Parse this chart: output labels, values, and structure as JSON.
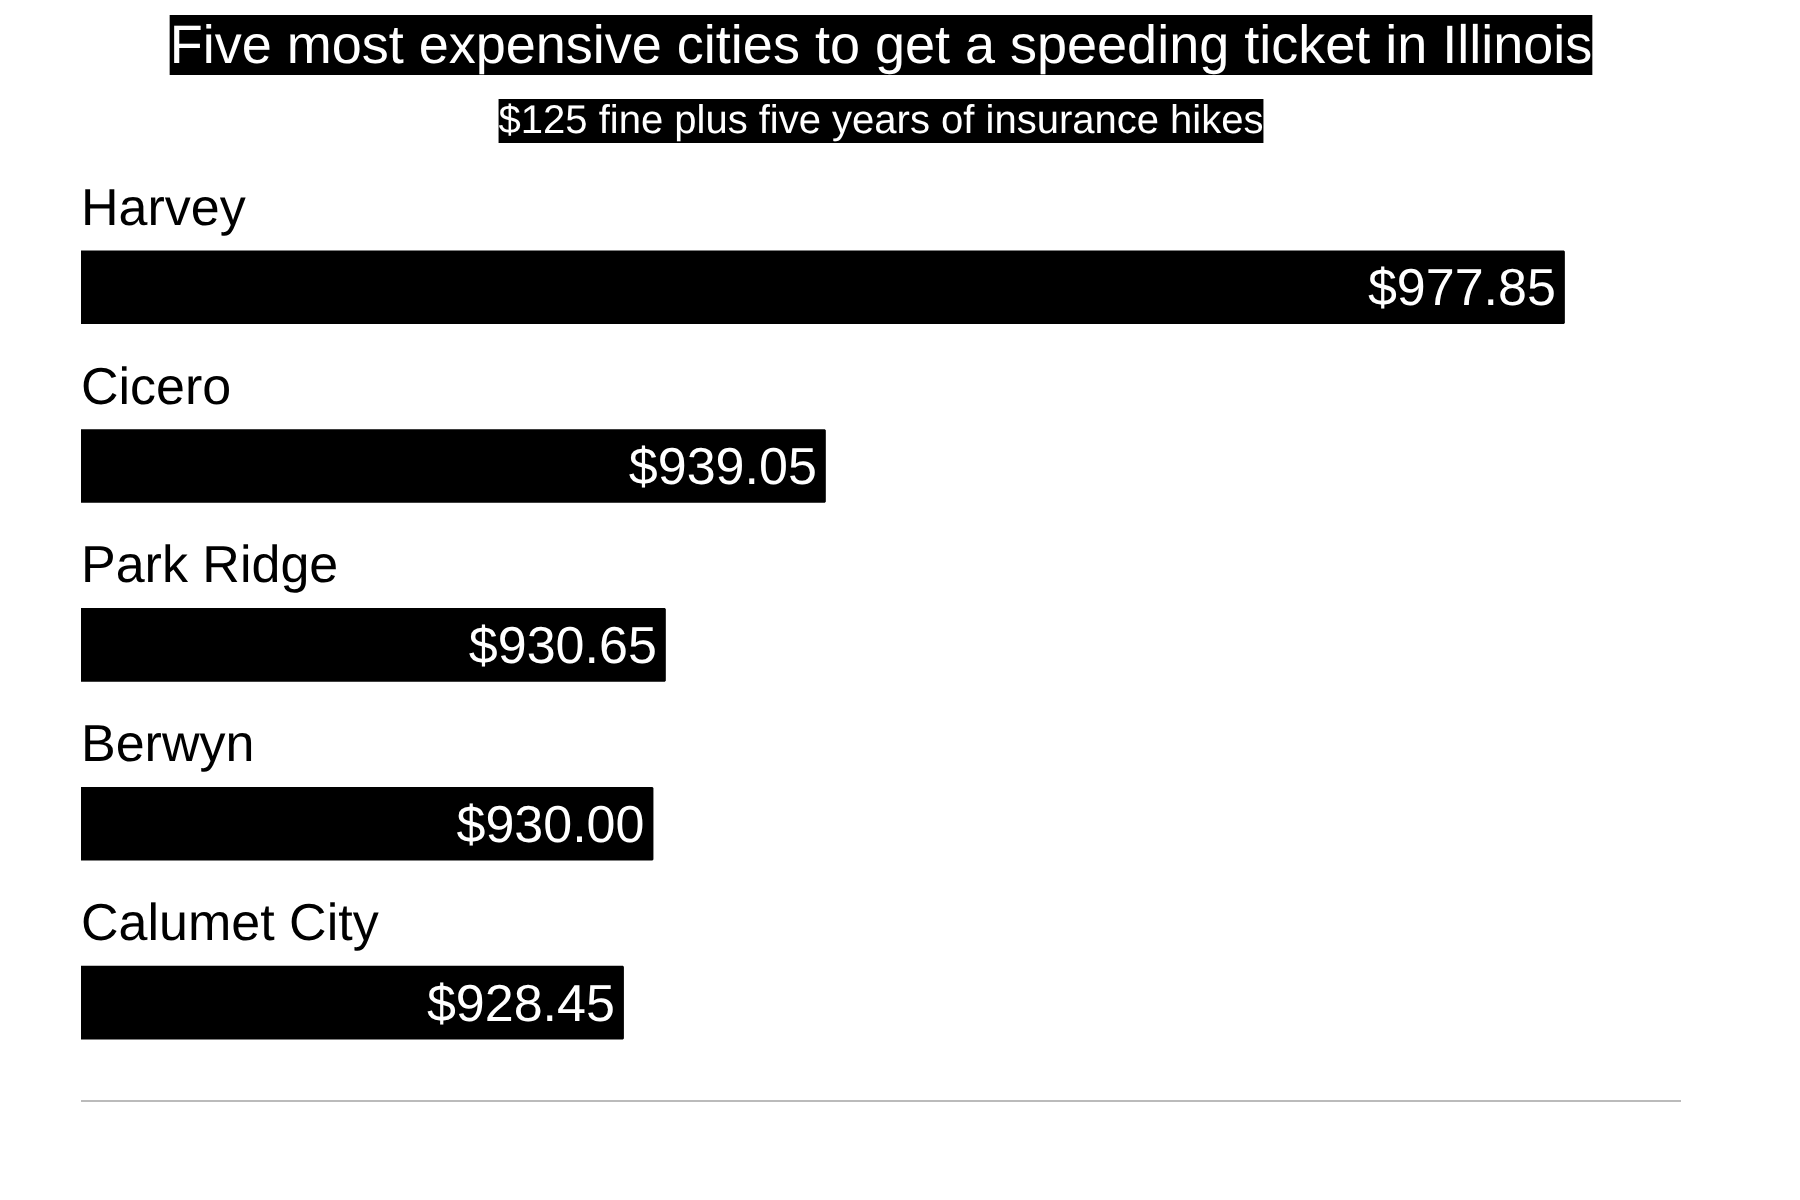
{
  "chart_data": {
    "type": "bar",
    "orientation": "horizontal",
    "title": "Five most expensive cities to get a speeding ticket in Illinois",
    "subtitle": "$125 fine plus five years of insurance hikes",
    "categories": [
      "Harvey",
      "Cicero",
      "Park Ridge",
      "Berwyn",
      "Calumet City"
    ],
    "values": [
      977.85,
      939.05,
      930.65,
      930.0,
      928.45
    ],
    "value_labels": [
      "$977.85",
      "$939.05",
      "$930.65",
      "$930.00",
      "$928.45"
    ],
    "color": "#000000",
    "xlim": [
      900,
      984
    ],
    "grid": false
  }
}
